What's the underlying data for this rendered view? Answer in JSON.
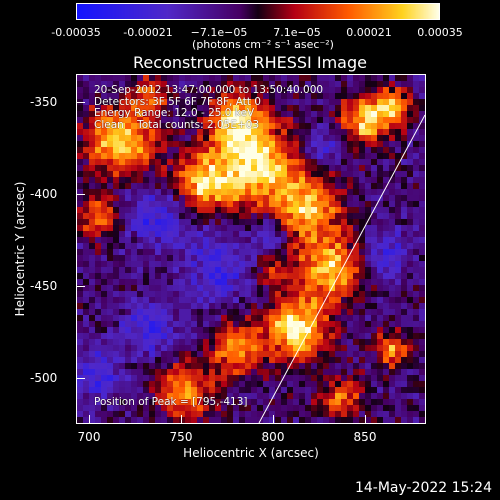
{
  "colorbar": {
    "ticks": [
      "-0.00035",
      "-0.00021",
      "−7.1e−05",
      "7.1e−05",
      "0.00021",
      "0.00035"
    ],
    "unit": "(photons cm⁻² s⁻¹ asec⁻²)",
    "range": [
      -0.00035,
      0.00035
    ]
  },
  "chart_data": {
    "type": "heatmap",
    "title": "Reconstructed RHESSI Image",
    "xlabel": "Heliocentric X (arcsec)",
    "ylabel": "Heliocentric Y (arcsec)",
    "xlim": [
      695,
      885
    ],
    "ylim": [
      -525,
      -335
    ],
    "x_ticks": [
      "700",
      "750",
      "800",
      "850"
    ],
    "y_ticks": [
      "-350",
      "-400",
      "-450",
      "-500"
    ],
    "annotations": [
      "20-Sep-2012 13:47:00.000 to 13:50:40.000",
      "Detectors: 3F 5F 6F 7F 8F, Att 0",
      "Energy Range: 12.0 - 25.0 keV",
      "Clean    Total counts: 2.05E+03"
    ],
    "peak_label": "Position of Peak = [795,-413]",
    "colormap": "blue-purple-red-yellow-white"
  },
  "footer": {
    "timestamp": "14-May-2022 15:24"
  }
}
